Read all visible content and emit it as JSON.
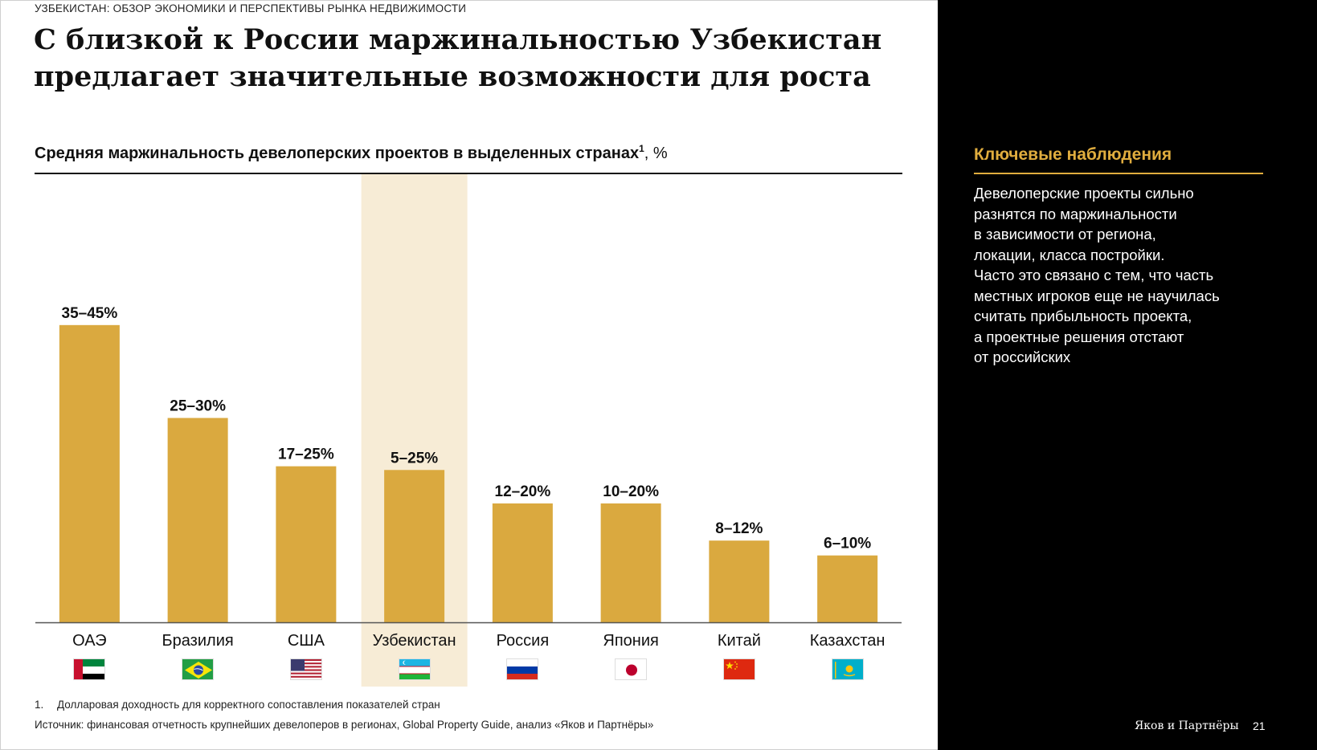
{
  "header": {
    "kicker": "УЗБЕКИСТАН: ОБЗОР ЭКОНОМИКИ И ПЕРСПЕКТИВЫ РЫНКА НЕДВИЖИМОСТИ",
    "title": "С близкой к России маржинальностью Узбекистан предлагает значительные возможности для роста"
  },
  "chart_header": {
    "title": "Средняя маржинальность девелоперских проектов в выделенных странах",
    "sup": "1",
    "unit": ", %"
  },
  "chart_data": {
    "type": "bar",
    "title": "Средняя маржинальность девелоперских проектов в выделенных странах",
    "ylabel": "%",
    "categories": [
      "ОАЭ",
      "Бразилия",
      "США",
      "Узбекистан",
      "Россия",
      "Япония",
      "Китай",
      "Казахстан"
    ],
    "labels": [
      "35–45%",
      "25–30%",
      "17–25%",
      "5–25%",
      "12–20%",
      "10–20%",
      "8–12%",
      "6–10%"
    ],
    "values": [
      40,
      27.5,
      21,
      20.5,
      16,
      16,
      11,
      9
    ],
    "highlight": "Узбекистан",
    "ylim": [
      0,
      42
    ],
    "grid": false,
    "colors": {
      "bar": "#daa93f",
      "highlight_band": "#f7ecd6",
      "axis": "#555555"
    }
  },
  "flags": [
    "uae-flag",
    "brazil-flag",
    "usa-flag",
    "uzbekistan-flag",
    "russia-flag",
    "japan-flag",
    "china-flag",
    "kazakhstan-flag"
  ],
  "footer": {
    "footnote_num": "1.",
    "footnote": "Долларовая доходность для корректного сопоставления показателей стран",
    "source": "Источник: финансовая отчетность крупнейших девелоперов в регионах, Global Property Guide, анализ «Яков и Партнёры»"
  },
  "insights": {
    "title": "Ключевые наблюдения",
    "text": "Девелоперские проекты сильно\nразнятся по маржинальности\nв зависимости от региона,\nлокации, класса постройки.\nЧасто это связано с тем, что часть\nместных игроков еще не научилась\nсчитать прибыльность проекта,\nа проектные решения отстают\nот российских"
  },
  "brand": {
    "name": "Яков и Партнёры",
    "page": "21"
  },
  "colors": {
    "accent": "#e0ad3e",
    "panel": "#000000"
  }
}
